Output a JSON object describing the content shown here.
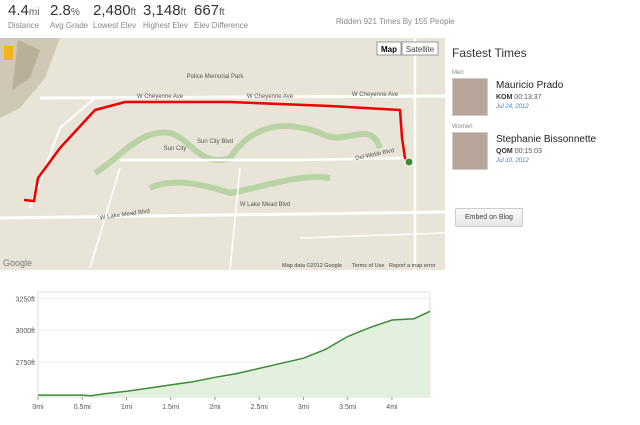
{
  "stats": [
    {
      "value": "4.4",
      "unit": "mi",
      "label": "Distance"
    },
    {
      "value": "2.8",
      "unit": "%",
      "label": "Avg Grade"
    },
    {
      "value": "2,480",
      "unit": "ft",
      "label": "Lowest Elev"
    },
    {
      "value": "3,148",
      "unit": "ft",
      "label": "Highest Elev"
    },
    {
      "value": "667",
      "unit": "ft",
      "label": "Elev Difference"
    }
  ],
  "ridden": "Ridden 921 Times By 155 People",
  "map": {
    "buttons": [
      "Map",
      "Satellite"
    ],
    "labels": [
      "Police Memorial Park",
      "W Cheyenne Ave",
      "W Cheyenne Ave",
      "W Cheyenne Ave",
      "Sun City",
      "Sun City Blvd",
      "Del Webb Blvd",
      "W Lake Mead Blvd",
      "W Lake Mead Blvd"
    ],
    "logo": "Google",
    "attribution": "Map data ©2012 Google",
    "terms": "Terms of Use",
    "report": "Report a map error"
  },
  "fastest_times": {
    "title": "Fastest Times",
    "groups": [
      {
        "label": "Men",
        "name": "Mauricio Prado",
        "rank": "KOM",
        "time": "00:13:37",
        "date": "Jul 24, 2012"
      },
      {
        "label": "Women",
        "name": "Stephanie Bissonnette",
        "rank": "QOM",
        "time": "00:15:03",
        "date": "Jul 10, 2012"
      }
    ]
  },
  "embed_button": "Embed on Blog",
  "elevation_chart": {
    "type": "area",
    "color": "#3d8b37",
    "x": [
      0,
      0.25,
      0.5,
      0.6,
      0.75,
      1,
      1.25,
      1.5,
      1.75,
      2,
      2.25,
      2.5,
      2.75,
      3,
      3.25,
      3.5,
      3.75,
      4,
      4.25,
      4.43
    ],
    "values": [
      2490,
      2490,
      2490,
      2485,
      2500,
      2520,
      2545,
      2570,
      2595,
      2630,
      2660,
      2700,
      2740,
      2780,
      2850,
      2950,
      3020,
      3080,
      3090,
      3148
    ],
    "xlim": [
      0,
      4.43
    ],
    "ylim": [
      2475,
      3300
    ],
    "xticks": [
      {
        "value": 0,
        "label": "0mi"
      },
      {
        "value": 0.5,
        "label": "0.5mi"
      },
      {
        "value": 1,
        "label": "1mi"
      },
      {
        "value": 1.5,
        "label": "1.5mi"
      },
      {
        "value": 2,
        "label": "2mi"
      },
      {
        "value": 2.5,
        "label": "2.5mi"
      },
      {
        "value": 3,
        "label": "3mi"
      },
      {
        "value": 3.5,
        "label": "3.5mi"
      },
      {
        "value": 4,
        "label": "4mi"
      }
    ],
    "yticks": [
      {
        "value": 2750,
        "label": "2750ft"
      },
      {
        "value": 3000,
        "label": "3000ft"
      },
      {
        "value": 3250,
        "label": "3250ft"
      }
    ]
  }
}
